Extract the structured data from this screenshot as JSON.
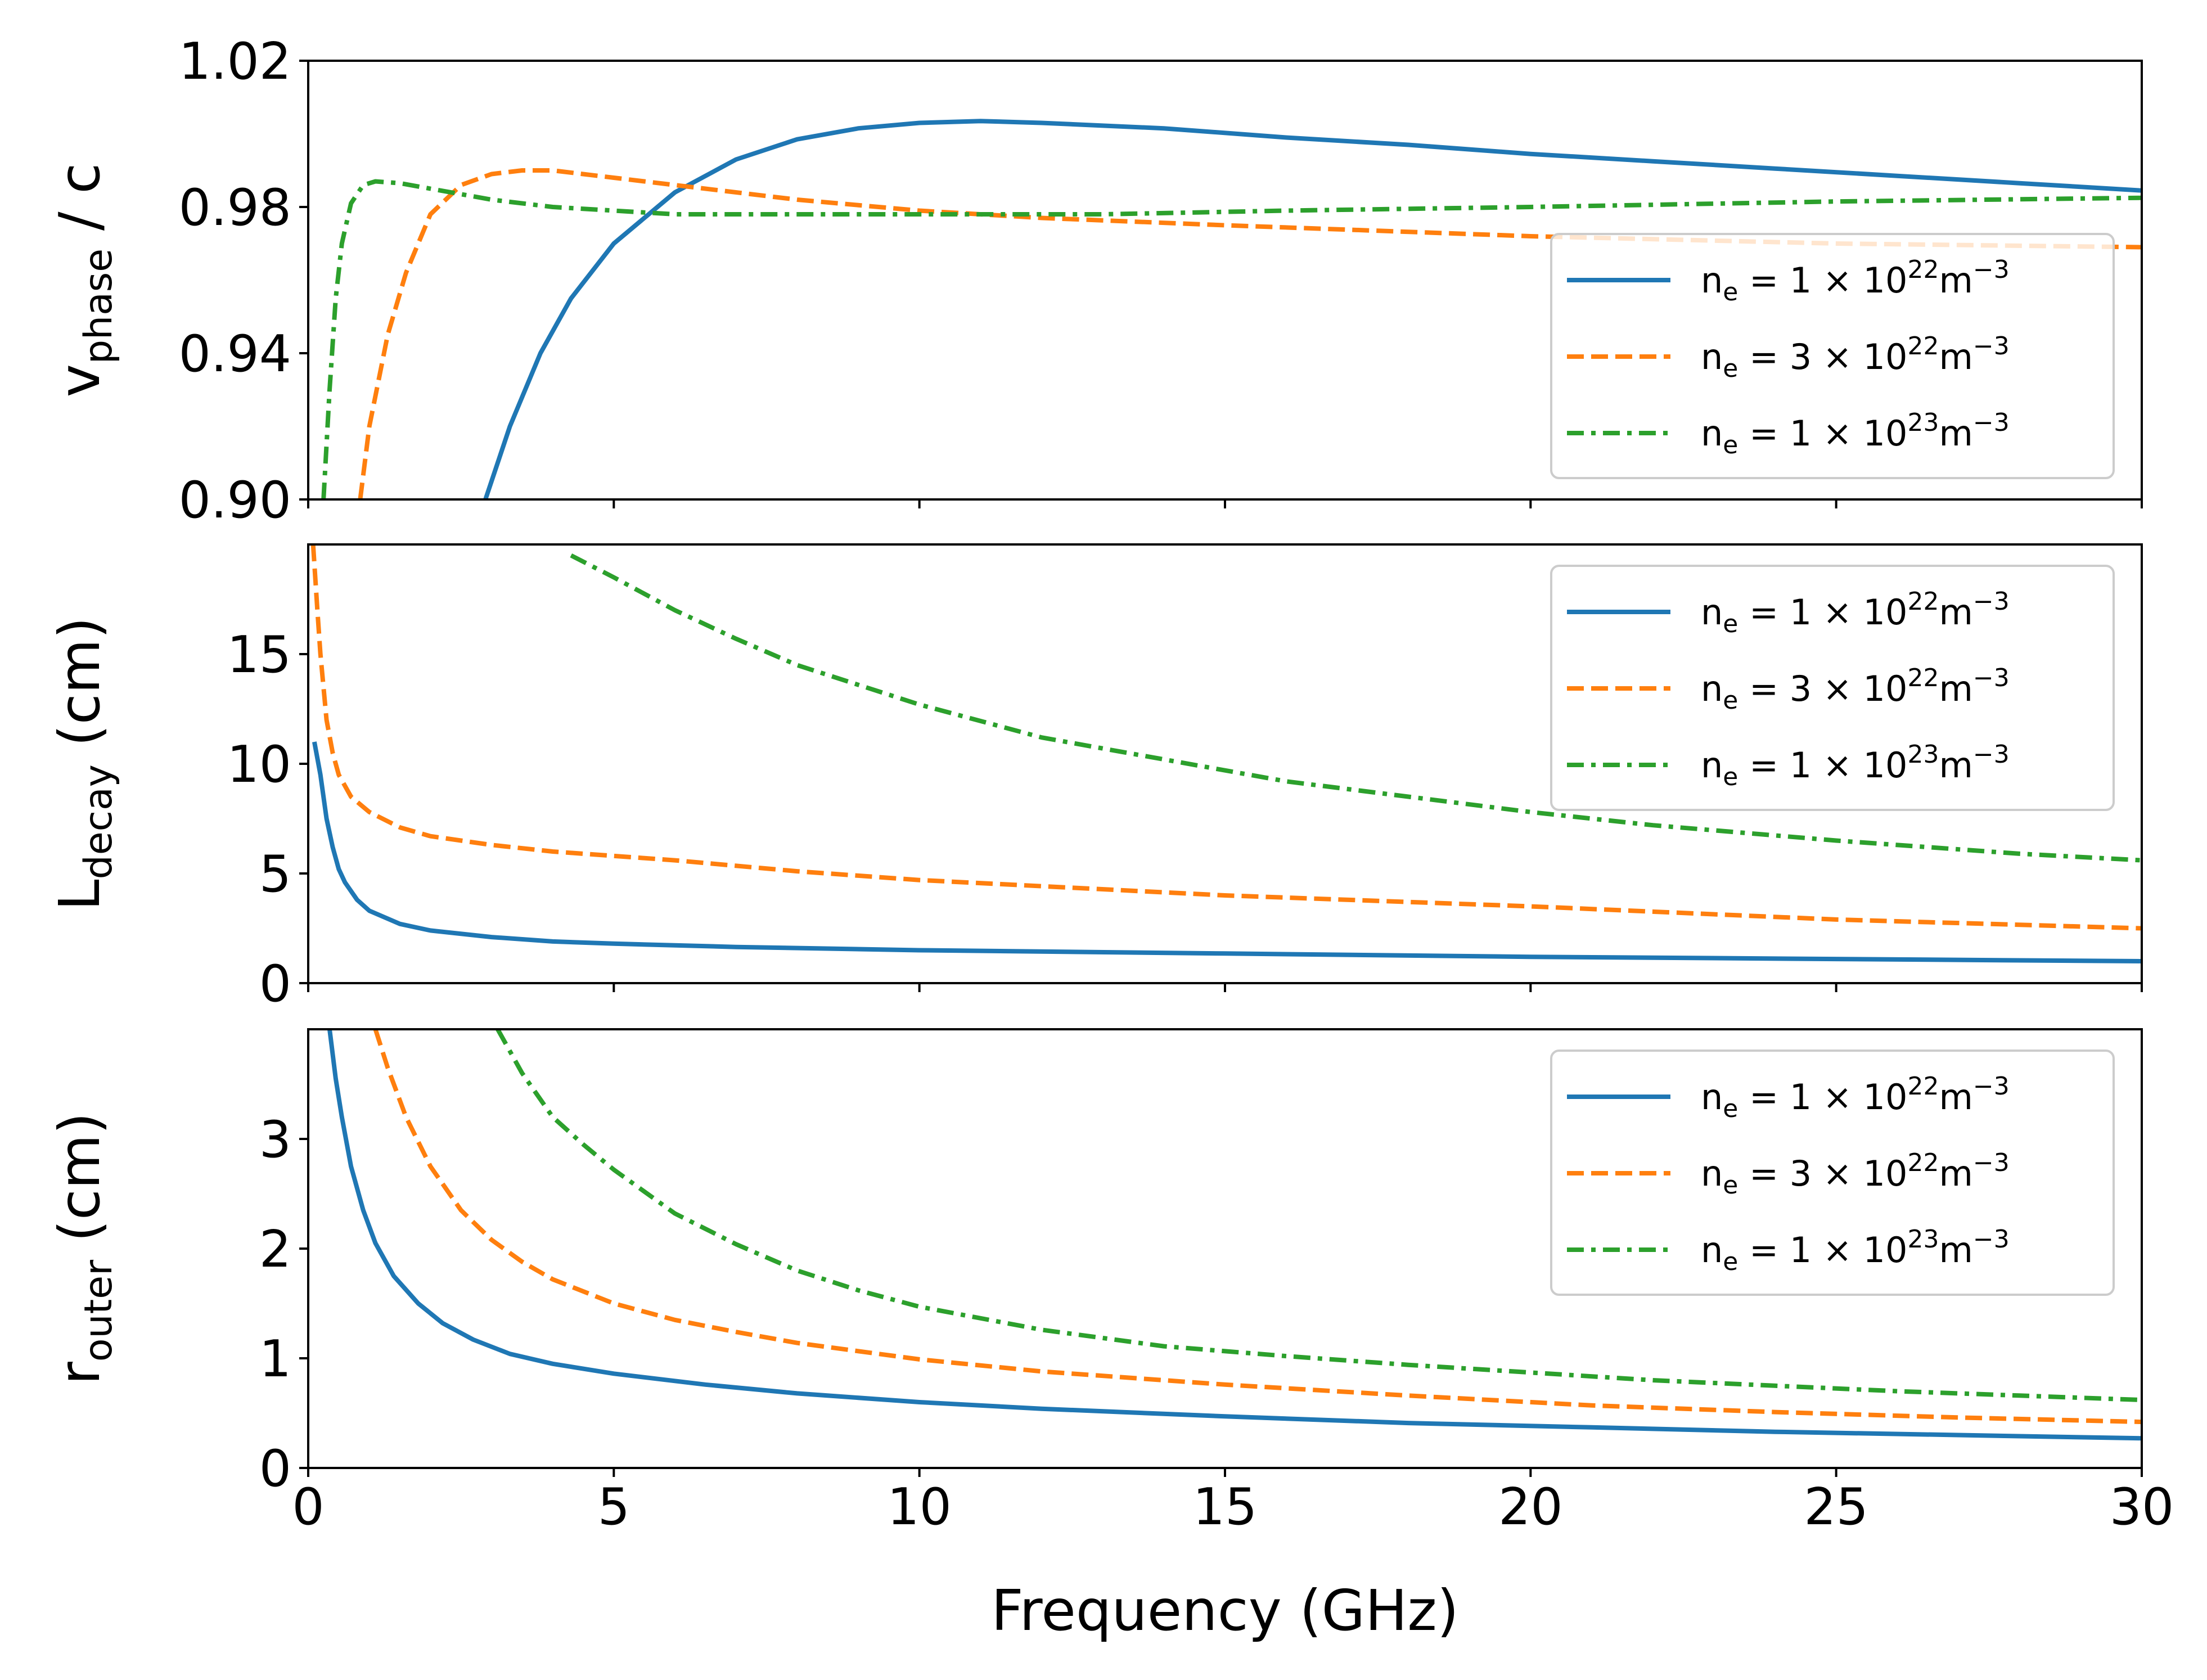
{
  "figure": {
    "xlabel": "Frequency (GHz)"
  },
  "legend_text": {
    "prefix": "n",
    "subscript": "e",
    "equals": " = ",
    "unit_base": "m",
    "unit_exp": "−3"
  },
  "chart_data": [
    {
      "type": "line",
      "id": "vphase",
      "ylabel": {
        "main": "v",
        "sub": "phase",
        "rest": " / c"
      },
      "xlim": [
        0,
        30
      ],
      "ylim": [
        0.9,
        1.02
      ],
      "xticks": [
        0,
        5,
        10,
        15,
        20,
        25,
        30
      ],
      "xtick_labels_shown": false,
      "yticks": [
        0.9,
        0.94,
        0.98,
        1.02
      ],
      "ytick_labels": [
        "0.90",
        "0.94",
        "0.98",
        "1.02"
      ],
      "legend": "lower right",
      "series": [
        {
          "name": "n_e = 1 × 10^22 m^-3",
          "coef": "1",
          "exp": "22",
          "color": "#1f77b4",
          "dash": "solid",
          "x": [
            2.9,
            3.3,
            3.8,
            4.3,
            5.0,
            6.0,
            7.0,
            8.0,
            9.0,
            10.0,
            11.0,
            12.0,
            14.0,
            16.0,
            18.0,
            20.0,
            22.0,
            24.0,
            26.0,
            28.0,
            30.0
          ],
          "y": [
            0.9,
            0.92,
            0.94,
            0.955,
            0.97,
            0.984,
            0.993,
            0.9985,
            1.0015,
            1.003,
            1.0035,
            1.003,
            1.0015,
            0.999,
            0.997,
            0.9945,
            0.9925,
            0.9905,
            0.9885,
            0.9865,
            0.9845
          ]
        },
        {
          "name": "n_e = 3 × 10^22 m^-3",
          "coef": "3",
          "exp": "22",
          "color": "#ff7f0e",
          "dash": "dashed",
          "x": [
            0.85,
            1.0,
            1.3,
            1.6,
            2.0,
            2.5,
            3.0,
            3.5,
            4.0,
            5.0,
            6.0,
            8.0,
            10.0,
            12.0,
            15.0,
            20.0,
            25.0,
            30.0
          ],
          "y": [
            0.9,
            0.92,
            0.945,
            0.962,
            0.978,
            0.986,
            0.989,
            0.99,
            0.99,
            0.988,
            0.986,
            0.982,
            0.979,
            0.977,
            0.975,
            0.972,
            0.97,
            0.969
          ]
        },
        {
          "name": "n_e = 1 × 10^23 m^-3",
          "coef": "1",
          "exp": "23",
          "color": "#2ca02c",
          "dash": "dashdot",
          "x": [
            0.25,
            0.35,
            0.45,
            0.55,
            0.7,
            0.9,
            1.1,
            1.5,
            2.0,
            3.0,
            4.0,
            5.0,
            6.0,
            8.0,
            10.0,
            13.0,
            16.0,
            20.0,
            25.0,
            30.0
          ],
          "y": [
            0.9,
            0.93,
            0.955,
            0.97,
            0.981,
            0.986,
            0.987,
            0.9865,
            0.985,
            0.982,
            0.98,
            0.979,
            0.978,
            0.978,
            0.978,
            0.978,
            0.979,
            0.98,
            0.9815,
            0.9825
          ]
        }
      ]
    },
    {
      "type": "line",
      "id": "ldecay",
      "ylabel": {
        "main": "L",
        "sub": "decay",
        "rest": " (cm)"
      },
      "xlim": [
        0,
        30
      ],
      "ylim": [
        0,
        20
      ],
      "xticks": [
        0,
        5,
        10,
        15,
        20,
        25,
        30
      ],
      "xtick_labels_shown": false,
      "yticks": [
        0,
        5,
        10,
        15
      ],
      "ytick_labels": [
        "0",
        "5",
        "10",
        "15"
      ],
      "legend": "upper right",
      "series": [
        {
          "name": "n_e = 1 × 10^22 m^-3",
          "coef": "1",
          "exp": "22",
          "color": "#1f77b4",
          "dash": "solid",
          "x": [
            0.1,
            0.2,
            0.3,
            0.4,
            0.5,
            0.6,
            0.8,
            1.0,
            1.5,
            2.0,
            3.0,
            4.0,
            5.0,
            7.0,
            10.0,
            15.0,
            20.0,
            25.0,
            30.0
          ],
          "y": [
            11.0,
            9.5,
            7.5,
            6.2,
            5.2,
            4.6,
            3.8,
            3.3,
            2.7,
            2.4,
            2.1,
            1.9,
            1.8,
            1.65,
            1.5,
            1.35,
            1.2,
            1.1,
            1.0
          ]
        },
        {
          "name": "n_e = 3 × 10^22 m^-3",
          "coef": "3",
          "exp": "22",
          "color": "#ff7f0e",
          "dash": "dashed",
          "x": [
            0.08,
            0.15,
            0.2,
            0.3,
            0.4,
            0.5,
            0.7,
            1.0,
            1.5,
            2.0,
            3.0,
            4.0,
            6.0,
            8.0,
            10.0,
            15.0,
            20.0,
            25.0,
            30.0
          ],
          "y": [
            20.0,
            17.0,
            15.0,
            12.0,
            10.5,
            9.5,
            8.5,
            7.8,
            7.1,
            6.7,
            6.3,
            6.0,
            5.6,
            5.1,
            4.7,
            4.0,
            3.5,
            2.9,
            2.5
          ]
        },
        {
          "name": "n_e = 1 × 10^23 m^-3",
          "coef": "1",
          "exp": "23",
          "color": "#2ca02c",
          "dash": "dashdot",
          "x": [
            4.3,
            5.0,
            6.0,
            7.0,
            8.0,
            10.0,
            12.0,
            14.0,
            16.0,
            18.0,
            20.0,
            22.0,
            25.0,
            28.0,
            30.0
          ],
          "y": [
            19.5,
            18.5,
            17.0,
            15.7,
            14.5,
            12.7,
            11.2,
            10.2,
            9.2,
            8.5,
            7.8,
            7.2,
            6.5,
            5.9,
            5.6
          ]
        }
      ]
    },
    {
      "type": "line",
      "id": "router",
      "ylabel": {
        "main": "r",
        "sub": "outer",
        "rest": " (cm)"
      },
      "xlim": [
        0,
        30
      ],
      "ylim": [
        0,
        4
      ],
      "xticks": [
        0,
        5,
        10,
        15,
        20,
        25,
        30
      ],
      "xtick_labels": [
        "0",
        "5",
        "10",
        "15",
        "20",
        "25",
        "30"
      ],
      "xtick_labels_shown": true,
      "yticks": [
        0,
        1,
        2,
        3
      ],
      "ytick_labels": [
        "0",
        "1",
        "2",
        "3"
      ],
      "legend": "upper right",
      "series": [
        {
          "name": "n_e = 1 × 10^22 m^-3",
          "coef": "1",
          "exp": "22",
          "color": "#1f77b4",
          "dash": "solid",
          "x": [
            0.35,
            0.45,
            0.55,
            0.7,
            0.9,
            1.1,
            1.4,
            1.8,
            2.2,
            2.7,
            3.3,
            4.0,
            5.0,
            6.5,
            8.0,
            10.0,
            12.0,
            15.0,
            18.0,
            21.0,
            24.0,
            27.0,
            30.0
          ],
          "y": [
            4.0,
            3.55,
            3.2,
            2.75,
            2.35,
            2.05,
            1.75,
            1.5,
            1.32,
            1.17,
            1.04,
            0.95,
            0.86,
            0.76,
            0.68,
            0.6,
            0.54,
            0.47,
            0.41,
            0.37,
            0.33,
            0.3,
            0.27
          ]
        },
        {
          "name": "n_e = 3 × 10^22 m^-3",
          "coef": "3",
          "exp": "22",
          "color": "#ff7f0e",
          "dash": "dashed",
          "x": [
            1.1,
            1.3,
            1.6,
            2.0,
            2.5,
            3.0,
            3.5,
            4.0,
            5.0,
            6.0,
            7.0,
            8.0,
            10.0,
            12.0,
            15.0,
            18.0,
            21.0,
            24.0,
            27.0,
            30.0
          ],
          "y": [
            4.0,
            3.65,
            3.2,
            2.75,
            2.35,
            2.08,
            1.88,
            1.72,
            1.5,
            1.35,
            1.24,
            1.14,
            0.99,
            0.88,
            0.76,
            0.66,
            0.57,
            0.51,
            0.46,
            0.42
          ]
        },
        {
          "name": "n_e = 1 × 10^23 m^-3",
          "coef": "1",
          "exp": "23",
          "color": "#2ca02c",
          "dash": "dashdot",
          "x": [
            3.1,
            3.5,
            4.0,
            4.5,
            5.0,
            6.0,
            7.0,
            8.0,
            9.0,
            10.0,
            12.0,
            14.0,
            16.0,
            18.0,
            20.0,
            22.0,
            24.0,
            26.0,
            28.0,
            30.0
          ],
          "y": [
            4.0,
            3.6,
            3.2,
            2.95,
            2.72,
            2.32,
            2.04,
            1.8,
            1.62,
            1.47,
            1.26,
            1.11,
            1.02,
            0.94,
            0.87,
            0.8,
            0.75,
            0.7,
            0.66,
            0.62
          ]
        }
      ]
    }
  ]
}
